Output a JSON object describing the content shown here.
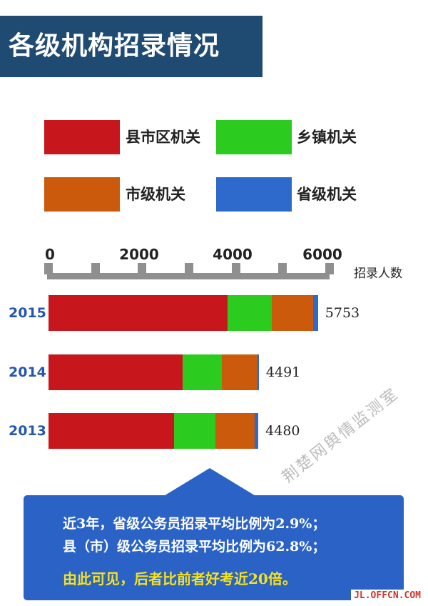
{
  "title": "各级机构招录情况",
  "colors": {
    "county": "#c8161d",
    "town": "#2ccb20",
    "city": "#cc5a0c",
    "province": "#2d6acc",
    "banner": "#1f4b72",
    "callout": "#2a62c6"
  },
  "chart_data": {
    "type": "bar",
    "orientation": "horizontal",
    "stacked": true,
    "categories": [
      "2015",
      "2014",
      "2013"
    ],
    "series": [
      {
        "name": "县市区机关",
        "color": "#c8161d",
        "values": [
          3819,
          2869,
          2676
        ]
      },
      {
        "name": "乡镇机关",
        "color": "#2ccb20",
        "values": [
          943,
          839,
          894
        ]
      },
      {
        "name": "市级机关",
        "color": "#cc5a0c",
        "values": [
          892,
          755,
          827
        ]
      },
      {
        "name": "省级机关",
        "color": "#2d6acc",
        "values": [
          99,
          28,
          83
        ]
      }
    ],
    "totals": [
      "5753",
      "4491",
      "4480"
    ],
    "xlim": [
      0,
      6000
    ],
    "xticks": [
      "0",
      "2000",
      "4000",
      "6000"
    ],
    "xlabel": "招录人数",
    "legend_position": "top"
  },
  "callout": {
    "line1": "近3年，省级公务员招录平均比例为2.9%；",
    "line2": "县（市）级公务员招录平均比例为62.8%；",
    "line3": "由此可见，后者比前者好考近20倍。"
  },
  "watermark": "荆楚网舆情监测室",
  "site": "JL.OFFCN.COM"
}
